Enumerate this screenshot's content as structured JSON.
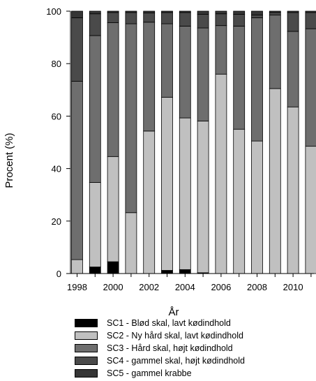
{
  "chart_data": {
    "type": "bar",
    "stacked": true,
    "title": "",
    "xlabel": "År",
    "ylabel": "Procent (%)",
    "ylim": [
      0,
      100
    ],
    "yticks": [
      "0",
      "20",
      "40",
      "60",
      "80",
      "100"
    ],
    "x": [
      1998,
      1999,
      2000,
      2001,
      2002,
      2003,
      2004,
      2005,
      2006,
      2007,
      2008,
      2009,
      2010,
      2011
    ],
    "xticks": [
      "1998",
      "2000",
      "2002",
      "2004",
      "2006",
      "2008",
      "2010"
    ],
    "legend_position": "bottom",
    "series": [
      {
        "name": "SC1 - Blød skal, lavt kødindhold",
        "color": "#000000",
        "values": [
          0,
          2.5,
          4.5,
          0,
          0,
          1.2,
          1.5,
          0.3,
          0,
          0,
          0,
          0,
          0,
          0
        ]
      },
      {
        "name": "SC2 - Ny hård skal, lavt kødindhold",
        "color": "#c0c0c0",
        "values": [
          5.3,
          32.2,
          40.1,
          23.2,
          54.3,
          66.0,
          57.8,
          57.8,
          76.0,
          55.0,
          50.5,
          70.5,
          63.5,
          48.5
        ]
      },
      {
        "name": "SC3 - Hård skal, højt kødindhold",
        "color": "#6e6e6e",
        "values": [
          68.0,
          56.0,
          51.0,
          72.0,
          41.5,
          28.0,
          35.0,
          35.5,
          18.5,
          39.3,
          47.0,
          28.0,
          28.8,
          44.8
        ]
      },
      {
        "name": "SC4 - gammel skal, højt kødindhold",
        "color": "#4a4a4a",
        "values": [
          24.2,
          8.3,
          3.9,
          4.3,
          3.5,
          4.3,
          5.2,
          5.2,
          4.5,
          4.5,
          1.0,
          1.0,
          7.2,
          6.2
        ]
      },
      {
        "name": "SC5 - gammel krabbe",
        "color": "#353535",
        "values": [
          2.5,
          1.0,
          0.5,
          0.5,
          0.7,
          0.5,
          0.5,
          1.2,
          1.0,
          1.2,
          1.5,
          0.5,
          0.5,
          0.5
        ]
      }
    ]
  }
}
